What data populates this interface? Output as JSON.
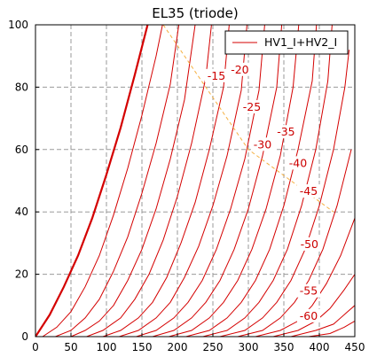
{
  "chart_data": {
    "type": "line",
    "title": "EL35  (triode)",
    "xlabel": "",
    "ylabel": "",
    "xlim": [
      0,
      450
    ],
    "ylim": [
      0,
      100
    ],
    "xticks": [
      0,
      50,
      100,
      150,
      200,
      250,
      300,
      350,
      400,
      450
    ],
    "yticks": [
      0,
      20,
      40,
      60,
      80,
      100
    ],
    "grid": true,
    "legend": {
      "position": "top-right",
      "entries": [
        "HV1_I+HV2_I"
      ]
    },
    "colors": {
      "curve": "#d40000",
      "label": "#cc0000",
      "load_line": "#f5b041",
      "grid": "#9a9a9a"
    },
    "series": [
      {
        "label": "",
        "bold": true,
        "points": [
          [
            0,
            0
          ],
          [
            20,
            7
          ],
          [
            40,
            16
          ],
          [
            60,
            26
          ],
          [
            80,
            38
          ],
          [
            100,
            52
          ],
          [
            120,
            67
          ],
          [
            140,
            84
          ],
          [
            158,
            100
          ]
        ]
      },
      {
        "label": "",
        "points": [
          [
            10,
            0
          ],
          [
            30,
            3
          ],
          [
            50,
            8
          ],
          [
            70,
            16
          ],
          [
            90,
            26
          ],
          [
            110,
            39
          ],
          [
            130,
            54
          ],
          [
            150,
            71
          ],
          [
            170,
            90
          ],
          [
            179,
            100
          ]
        ]
      },
      {
        "label": "",
        "points": [
          [
            28,
            0
          ],
          [
            50,
            2
          ],
          [
            70,
            6
          ],
          [
            90,
            12
          ],
          [
            110,
            21
          ],
          [
            130,
            32
          ],
          [
            150,
            46
          ],
          [
            170,
            62
          ],
          [
            190,
            81
          ],
          [
            202,
            100
          ]
        ]
      },
      {
        "label": "",
        "points": [
          [
            50,
            0
          ],
          [
            70,
            2
          ],
          [
            90,
            5
          ],
          [
            110,
            10
          ],
          [
            130,
            18
          ],
          [
            150,
            28
          ],
          [
            170,
            41
          ],
          [
            190,
            57
          ],
          [
            210,
            76
          ],
          [
            225,
            100
          ]
        ]
      },
      {
        "label": "-15",
        "label_pos": [
          255,
          83
        ],
        "points": [
          [
            72,
            0
          ],
          [
            95,
            2
          ],
          [
            120,
            6
          ],
          [
            140,
            12
          ],
          [
            160,
            20
          ],
          [
            180,
            31
          ],
          [
            200,
            45
          ],
          [
            220,
            62
          ],
          [
            240,
            83
          ],
          [
            248,
            100
          ]
        ]
      },
      {
        "label": "-20",
        "label_pos": [
          288,
          85
        ],
        "points": [
          [
            95,
            0
          ],
          [
            120,
            2
          ],
          [
            145,
            6
          ],
          [
            165,
            11
          ],
          [
            185,
            19
          ],
          [
            205,
            30
          ],
          [
            225,
            43
          ],
          [
            245,
            60
          ],
          [
            265,
            80
          ],
          [
            273,
            100
          ]
        ]
      },
      {
        "label": "-25",
        "label_pos": [
          305,
          73
        ],
        "points": [
          [
            118,
            0
          ],
          [
            145,
            2
          ],
          [
            170,
            6
          ],
          [
            190,
            11
          ],
          [
            210,
            19
          ],
          [
            230,
            29
          ],
          [
            250,
            42
          ],
          [
            270,
            58
          ],
          [
            290,
            79
          ],
          [
            298,
            100
          ]
        ]
      },
      {
        "label": "-30",
        "label_pos": [
          320,
          61
        ],
        "points": [
          [
            142,
            0
          ],
          [
            170,
            2
          ],
          [
            195,
            6
          ],
          [
            215,
            11
          ],
          [
            235,
            18
          ],
          [
            255,
            28
          ],
          [
            275,
            41
          ],
          [
            295,
            57
          ],
          [
            315,
            79
          ],
          [
            323,
            100
          ]
        ]
      },
      {
        "label": "-35",
        "label_pos": [
          353,
          65
        ],
        "points": [
          [
            165,
            0
          ],
          [
            195,
            2
          ],
          [
            220,
            6
          ],
          [
            240,
            11
          ],
          [
            260,
            18
          ],
          [
            280,
            28
          ],
          [
            300,
            41
          ],
          [
            320,
            58
          ],
          [
            340,
            80
          ],
          [
            347,
            100
          ]
        ]
      },
      {
        "label": "-40",
        "label_pos": [
          370,
          55
        ],
        "points": [
          [
            188,
            0
          ],
          [
            220,
            2
          ],
          [
            245,
            6
          ],
          [
            265,
            11
          ],
          [
            285,
            18
          ],
          [
            305,
            28
          ],
          [
            325,
            41
          ],
          [
            345,
            58
          ],
          [
            363,
            80
          ],
          [
            371,
            100
          ]
        ]
      },
      {
        "label": "-45",
        "label_pos": [
          385,
          46
        ],
        "points": [
          [
            212,
            0
          ],
          [
            245,
            2
          ],
          [
            270,
            6
          ],
          [
            290,
            11
          ],
          [
            310,
            18
          ],
          [
            330,
            28
          ],
          [
            350,
            42
          ],
          [
            370,
            60
          ],
          [
            390,
            82
          ],
          [
            396,
            100
          ]
        ]
      },
      {
        "label": "-50",
        "label_pos": [
          386,
          29
        ],
        "points": [
          [
            236,
            0
          ],
          [
            270,
            2
          ],
          [
            295,
            6
          ],
          [
            315,
            11
          ],
          [
            335,
            18
          ],
          [
            355,
            28
          ],
          [
            375,
            42
          ],
          [
            395,
            60
          ],
          [
            412,
            82
          ],
          [
            418,
            100
          ]
        ]
      },
      {
        "label": "-55",
        "label_pos": [
          385,
          14
        ],
        "points": [
          [
            260,
            0
          ],
          [
            295,
            2
          ],
          [
            320,
            6
          ],
          [
            340,
            11
          ],
          [
            360,
            18
          ],
          [
            380,
            28
          ],
          [
            400,
            42
          ],
          [
            420,
            60
          ],
          [
            436,
            80
          ],
          [
            442,
            92
          ]
        ]
      },
      {
        "label": "-60",
        "label_pos": [
          385,
          6
        ],
        "points": [
          [
            285,
            0
          ],
          [
            320,
            2
          ],
          [
            345,
            6
          ],
          [
            365,
            11
          ],
          [
            385,
            18
          ],
          [
            405,
            28
          ],
          [
            425,
            42
          ],
          [
            445,
            60
          ]
        ]
      },
      {
        "label": "",
        "points": [
          [
            310,
            0
          ],
          [
            345,
            2
          ],
          [
            370,
            5
          ],
          [
            390,
            10
          ],
          [
            410,
            17
          ],
          [
            430,
            26
          ],
          [
            450,
            38
          ]
        ]
      },
      {
        "label": "",
        "points": [
          [
            335,
            0
          ],
          [
            370,
            2
          ],
          [
            395,
            5
          ],
          [
            415,
            9
          ],
          [
            435,
            15
          ],
          [
            450,
            20
          ]
        ]
      },
      {
        "label": "",
        "points": [
          [
            360,
            0
          ],
          [
            395,
            2
          ],
          [
            420,
            4
          ],
          [
            440,
            8
          ],
          [
            450,
            10
          ]
        ]
      },
      {
        "label": "",
        "points": [
          [
            385,
            0
          ],
          [
            415,
            1
          ],
          [
            435,
            3
          ],
          [
            450,
            5
          ]
        ]
      }
    ],
    "load_line": {
      "points": [
        [
          180,
          100
        ],
        [
          300,
          60
        ],
        [
          420,
          40
        ]
      ]
    }
  }
}
